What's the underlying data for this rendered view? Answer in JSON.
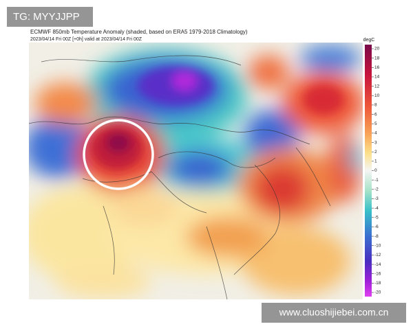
{
  "watermark_top": "TG: MYYJJPP",
  "header": {
    "title": "ECMWF 850mb Temperature Anomaly (shaded, based on ERA5 1979-2018 Climatology)",
    "subtitle": "2023/04/14 Fri 00Z [+0h] valid at 2023/04/14 Fri 00Z"
  },
  "colorbar": {
    "unit": "degC",
    "ticks": [
      20,
      18,
      16,
      14,
      12,
      10,
      8,
      6,
      5,
      4,
      3,
      2,
      1,
      0,
      -1,
      -2,
      -3,
      -4,
      -5,
      -6,
      -8,
      -10,
      -12,
      -14,
      -16,
      -18,
      -20
    ]
  },
  "watermark_bottom": "www.cluoshijiebei.com.cn"
}
